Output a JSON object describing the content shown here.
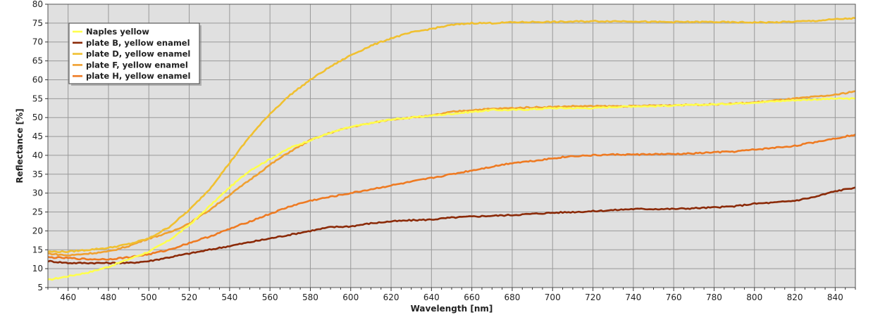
{
  "chart_data": {
    "type": "line",
    "title": "",
    "xlabel": "Wavelength [nm]",
    "ylabel": "Reflectance [%]",
    "xlim": [
      450,
      850
    ],
    "ylim": [
      5,
      80
    ],
    "x_ticks": [
      460,
      480,
      500,
      520,
      540,
      560,
      580,
      600,
      620,
      640,
      660,
      680,
      700,
      720,
      740,
      760,
      780,
      800,
      820,
      840
    ],
    "y_ticks": [
      5,
      10,
      15,
      20,
      25,
      30,
      35,
      40,
      45,
      50,
      55,
      60,
      65,
      70,
      75,
      80
    ],
    "grid": true,
    "background": "#e0e0e0",
    "grid_color": "#999999",
    "legend_position": "top-left",
    "x": [
      450,
      460,
      470,
      480,
      490,
      500,
      510,
      520,
      530,
      540,
      550,
      560,
      570,
      580,
      590,
      600,
      610,
      620,
      630,
      640,
      650,
      660,
      670,
      680,
      690,
      700,
      710,
      720,
      730,
      740,
      750,
      760,
      770,
      780,
      790,
      800,
      810,
      820,
      830,
      840,
      850
    ],
    "series": [
      {
        "name": "Naples yellow",
        "color": "#ffff4d",
        "values": [
          7,
          8,
          9,
          10.5,
          12.5,
          14.5,
          17.5,
          21.5,
          26.5,
          31.5,
          36,
          39,
          42,
          44,
          46,
          47.5,
          48.5,
          49.5,
          50,
          50.5,
          51,
          51.5,
          52,
          52,
          52.2,
          52.5,
          52.5,
          52.5,
          52.8,
          53,
          53,
          53.2,
          53.3,
          53.5,
          53.7,
          54,
          54.3,
          54.6,
          54.8,
          55,
          55
        ]
      },
      {
        "name": "plate B, yellow enamel",
        "color": "#8b2a08",
        "values": [
          12,
          11.5,
          11.5,
          11.5,
          11.5,
          12,
          13,
          14,
          15,
          16,
          17,
          18,
          19,
          20,
          21,
          21.2,
          22,
          22.5,
          22.8,
          23,
          23.5,
          23.8,
          24,
          24.2,
          24.5,
          24.8,
          25,
          25.2,
          25.5,
          25.8,
          25.8,
          25.8,
          26,
          26.2,
          26.5,
          27.2,
          27.5,
          28,
          29,
          30.5,
          31.5
        ]
      },
      {
        "name": "plate D, yellow enamel",
        "color": "#f0c030",
        "values": [
          14.5,
          14.5,
          15,
          15.5,
          16.5,
          18,
          21,
          25.5,
          31,
          38,
          45,
          51,
          56,
          60,
          63.5,
          66.5,
          69,
          71,
          72.5,
          73.5,
          74.5,
          75,
          75,
          75.2,
          75.3,
          75.3,
          75.4,
          75.5,
          75.5,
          75.5,
          75.3,
          75.3,
          75.3,
          75.3,
          75.2,
          75.2,
          75.2,
          75.4,
          75.6,
          76,
          76.3
        ]
      },
      {
        "name": "plate F, yellow enamel",
        "color": "#f0a030",
        "values": [
          14,
          13.5,
          14,
          14.5,
          16,
          18,
          19.5,
          22,
          25.5,
          29.5,
          33.5,
          37.5,
          41,
          44,
          46,
          47.5,
          48.5,
          49.5,
          50,
          50.5,
          51.5,
          52,
          52.3,
          52.5,
          52.7,
          52.8,
          53,
          53,
          53,
          53,
          53.2,
          53.3,
          53.4,
          53.5,
          53.7,
          54,
          54.5,
          55,
          55.5,
          56,
          57
        ]
      },
      {
        "name": "plate H, yellow enamel",
        "color": "#ee7a22",
        "values": [
          13,
          12.8,
          12.5,
          12.5,
          13,
          13.8,
          15,
          16.8,
          18.5,
          20.5,
          22.5,
          24.5,
          26.5,
          28,
          29,
          30,
          31,
          32,
          33,
          34,
          35,
          36,
          37,
          38,
          38.5,
          39.2,
          39.8,
          40,
          40.2,
          40.2,
          40.3,
          40.3,
          40.5,
          40.8,
          41,
          41.5,
          42,
          42.5,
          43.5,
          44.5,
          45.5
        ]
      }
    ]
  }
}
